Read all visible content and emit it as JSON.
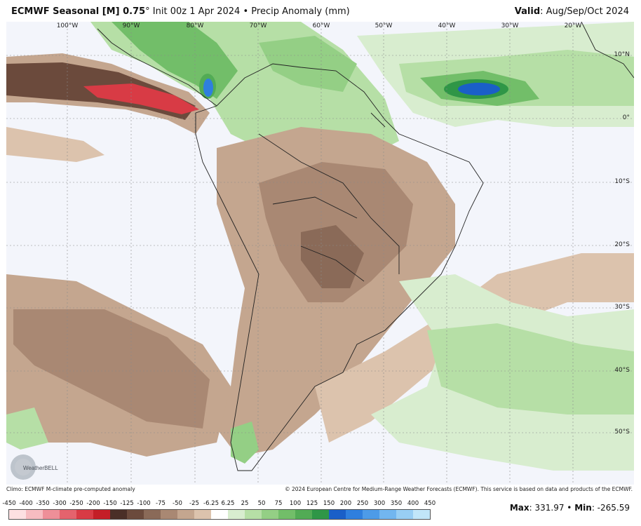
{
  "header": {
    "model": "ECMWF Seasonal [M] 0.75",
    "degree": "°",
    "init": "Init 00z 1 Apr 2024",
    "bullet": "•",
    "product": "Precip Anomaly (mm)",
    "valid_label": "Valid",
    "valid_value": ": Aug/Sep/Oct 2024"
  },
  "map": {
    "lon_labels": [
      "100°W",
      "90°W",
      "80°W",
      "70°W",
      "60°W",
      "50°W",
      "40°W",
      "30°W",
      "20°W"
    ],
    "lat_labels": [
      "10°N",
      "0°",
      "10°S",
      "20°S",
      "30°S",
      "40°S",
      "50°S"
    ],
    "logo_text": "WeatherBELL"
  },
  "footer": {
    "climo": "Climo: ECMWF M-climate pre-computed anomaly",
    "copyright": "© 2024 European Centre for Medium-Range Weather Forecasts (ECMWF). This service is based on data and products of the ECMWF."
  },
  "legend": {
    "labels": [
      "-450",
      "-400",
      "-350",
      "-300",
      "-250",
      "-200",
      "-150",
      "-125",
      "-100",
      "-75",
      "-50",
      "-25",
      "-6.25",
      "6.25",
      "25",
      "50",
      "75",
      "100",
      "125",
      "150",
      "200",
      "250",
      "300",
      "350",
      "400",
      "450"
    ],
    "colors": [
      "#fde0e2",
      "#f7bcc1",
      "#ee8f98",
      "#e4636d",
      "#d83b45",
      "#c41e27",
      "#4a2f27",
      "#6b4a3c",
      "#8a6a58",
      "#a98873",
      "#c4a68f",
      "#dcc3ad",
      "#ffffff",
      "#d8edcf",
      "#b6dfa6",
      "#94cf85",
      "#72be69",
      "#52ab55",
      "#2f9647",
      "#1a5fc8",
      "#2f7fde",
      "#4d9be8",
      "#72b6ef",
      "#98cef4",
      "#c1e6f9"
    ]
  },
  "stats": {
    "max_label": "Max",
    "max_value": ": 331.97",
    "sep": " • ",
    "min_label": "Min",
    "min_value": ": -265.59"
  }
}
